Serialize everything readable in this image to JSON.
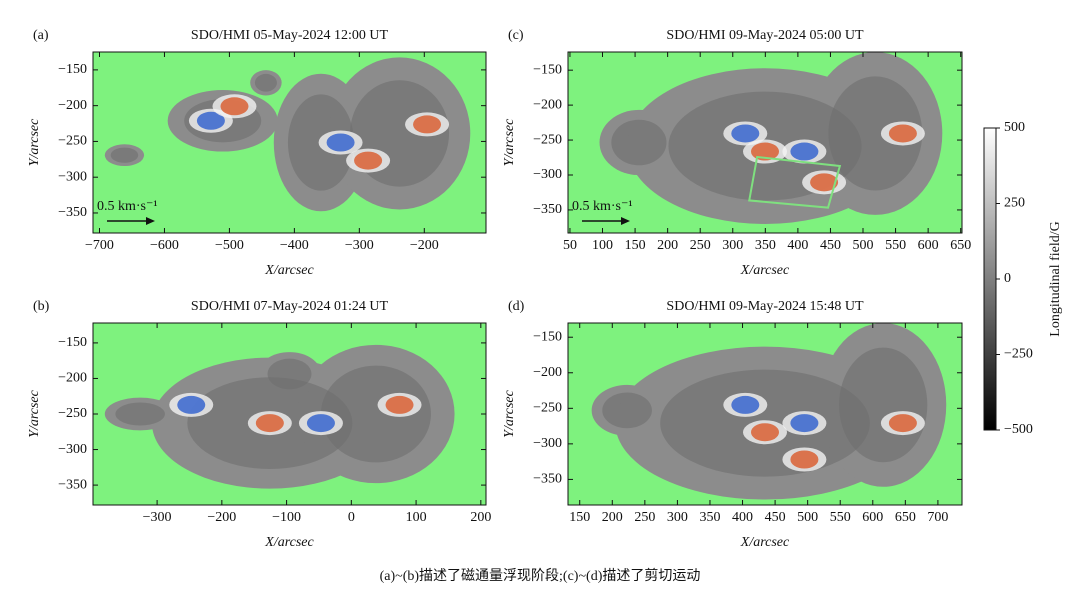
{
  "chart_data": [
    {
      "type": "image",
      "panel": "(a)",
      "title": "SDO/HMI 05-May-2024 12:00 UT",
      "xlabel": "X/arcsec",
      "ylabel": "Y/arcsec",
      "xlim": [
        -710,
        -105
      ],
      "ylim": [
        -378,
        -125
      ],
      "xticks": [
        {
          "value": -700,
          "label": "−700"
        },
        {
          "value": -600,
          "label": "−600"
        },
        {
          "value": -500,
          "label": "−500"
        },
        {
          "value": -400,
          "label": "−400"
        },
        {
          "value": -300,
          "label": "−300"
        },
        {
          "value": -200,
          "label": "−200"
        }
      ],
      "yticks": [
        {
          "value": -150,
          "label": "−150"
        },
        {
          "value": -200,
          "label": "−200"
        },
        {
          "value": -250,
          "label": "−250"
        },
        {
          "value": -300,
          "label": "−300"
        },
        {
          "value": -350,
          "label": "−350"
        }
      ],
      "annotation": "0.5 km·s⁻¹"
    },
    {
      "type": "image",
      "panel": "(b)",
      "title": "SDO/HMI 07-May-2024 01:24 UT",
      "xlabel": "X/arcsec",
      "ylabel": "Y/arcsec",
      "xlim": [
        -399,
        208
      ],
      "ylim": [
        -378,
        -122
      ],
      "xticks": [
        {
          "value": -300,
          "label": "−300"
        },
        {
          "value": -200,
          "label": "−200"
        },
        {
          "value": -100,
          "label": "−100"
        },
        0,
        100,
        200
      ],
      "yticks": [
        {
          "value": -150,
          "label": "−150"
        },
        {
          "value": -200,
          "label": "−200"
        },
        {
          "value": -250,
          "label": "−250"
        },
        {
          "value": -300,
          "label": "−300"
        },
        {
          "value": -350,
          "label": "−350"
        }
      ]
    },
    {
      "type": "image",
      "panel": "(c)",
      "title": "SDO/HMI 09-May-2024 05:00 UT",
      "xlabel": "X/arcsec",
      "ylabel": "Y/arcsec",
      "xlim": [
        47,
        652
      ],
      "ylim": [
        -383,
        -124
      ],
      "xticks": [
        50,
        100,
        150,
        200,
        250,
        300,
        350,
        400,
        450,
        500,
        550,
        600,
        650
      ],
      "yticks": [
        {
          "value": -150,
          "label": "−150"
        },
        {
          "value": -200,
          "label": "−200"
        },
        {
          "value": -250,
          "label": "−250"
        },
        {
          "value": -300,
          "label": "−300"
        },
        {
          "value": -350,
          "label": "−350"
        }
      ],
      "annotation": "0.5 km·s⁻¹"
    },
    {
      "type": "image",
      "panel": "(d)",
      "title": "SDO/HMI 09-May-2024 15:48 UT",
      "xlabel": "X/arcsec",
      "ylabel": "Y/arcsec",
      "xlim": [
        132,
        737
      ],
      "ylim": [
        -386,
        -130
      ],
      "xticks": [
        150,
        200,
        250,
        300,
        350,
        400,
        450,
        500,
        550,
        600,
        650,
        700
      ],
      "yticks": [
        {
          "value": -150,
          "label": "−150"
        },
        {
          "value": -200,
          "label": "−200"
        },
        {
          "value": -250,
          "label": "−250"
        },
        {
          "value": -300,
          "label": "−300"
        },
        {
          "value": -350,
          "label": "−350"
        }
      ]
    }
  ],
  "colorbar": {
    "label": "Longitudinal field/G",
    "lim": [
      -500,
      500
    ],
    "ticks": [
      500,
      250,
      0,
      {
        "value": -250,
        "label": "−250"
      },
      {
        "value": -500,
        "label": "−500"
      }
    ]
  },
  "caption": "(a)~(b)描述了磁通量浮现阶段;(c)~(d)描述了剪切运动"
}
